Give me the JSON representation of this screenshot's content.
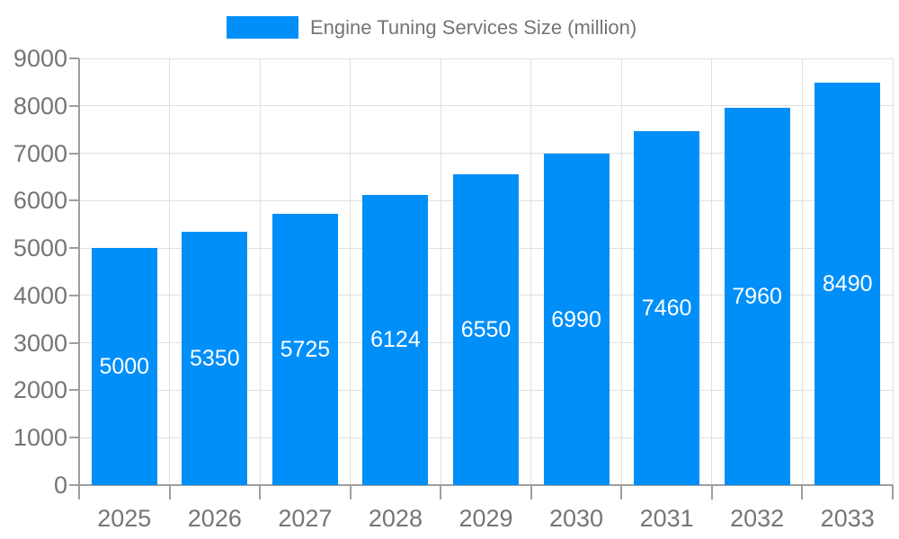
{
  "legend": {
    "label": "Engine Tuning Services Size (million)"
  },
  "chart_data": {
    "type": "bar",
    "title": "Engine Tuning Services Size (million)",
    "categories": [
      "2025",
      "2026",
      "2027",
      "2028",
      "2029",
      "2030",
      "2031",
      "2032",
      "2033"
    ],
    "values": [
      5000,
      5350,
      5725,
      6124,
      6550,
      6990,
      7460,
      7960,
      8490
    ],
    "series": [
      {
        "name": "Engine Tuning Services Size (million)",
        "values": [
          5000,
          5350,
          5725,
          6124,
          6550,
          6990,
          7460,
          7960,
          8490
        ]
      }
    ],
    "xlabel": "",
    "ylabel": "",
    "ylim": [
      0,
      9000
    ],
    "yticks": [
      0,
      1000,
      2000,
      3000,
      4000,
      5000,
      6000,
      7000,
      8000,
      9000
    ],
    "grid": true,
    "legend_position": "top",
    "value_labels": "inside-center",
    "colors": {
      "bar": "#008FF9",
      "grid": "#E0E0E0",
      "axis": "#9E9E9E",
      "tick_label": "#757575",
      "legend_text": "#757575",
      "value_label": "#FFFFFF",
      "background": "#FFFFFF"
    }
  }
}
